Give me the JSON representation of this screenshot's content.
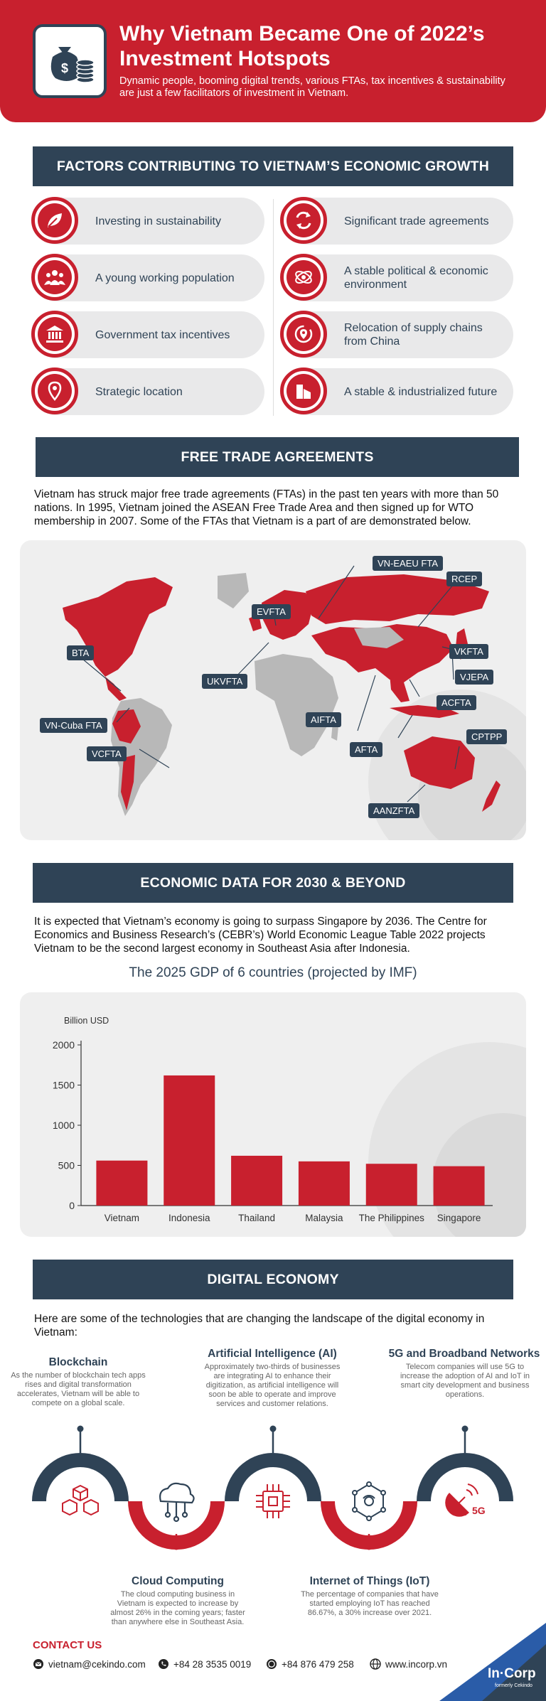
{
  "header": {
    "title": "Why Vietnam Became One of 2022’s Investment Hotspots",
    "subtitle": "Dynamic people, booming digital trends, various FTAs, tax incentives & sustainability are just a few facilitators of investment in Vietnam.",
    "logo_icon": "money-bag-coins-icon"
  },
  "factors": {
    "heading": "FACTORS CONTRIBUTING TO VIETNAM’S ECONOMIC GROWTH",
    "items": [
      {
        "label": "Investing in sustainability",
        "icon": "leaf-icon"
      },
      {
        "label": "Significant trade agreements",
        "icon": "exchange-arrows-icon"
      },
      {
        "label": "A young working population",
        "icon": "people-group-icon"
      },
      {
        "label": "A stable political & economic environment",
        "icon": "orbit-icon"
      },
      {
        "label": "Government tax incentives",
        "icon": "government-building-icon"
      },
      {
        "label": "Relocation of supply chains from China",
        "icon": "location-cycle-icon"
      },
      {
        "label": "Strategic location",
        "icon": "map-pin-icon"
      },
      {
        "label": "A stable & industrialized future",
        "icon": "industry-building-icon"
      }
    ]
  },
  "fta": {
    "heading": "FREE TRADE AGREEMENTS",
    "paragraph": "Vietnam has struck major free trade agreements (FTAs) in the past ten years with more than 50 nations. In 1995, Vietnam joined the ASEAN Free Trade Area and then signed up for WTO membership in 2007. Some of the FTAs that Vietnam is a part of are demonstrated below.",
    "labels": [
      "VN-EAEU FTA",
      "RCEP",
      "EVFTA",
      "BTA",
      "VKFTA",
      "VJEPA",
      "UKVFTA",
      "ACFTA",
      "AIFTA",
      "VN-Cuba FTA",
      "AFTA",
      "CPTPP",
      "VCFTA",
      "AANZFTA"
    ]
  },
  "economic": {
    "heading": "ECONOMIC DATA FOR 2030 & BEYOND",
    "paragraph": "It is expected that Vietnam’s economy is going to surpass Singapore by 2036. The Centre for Economics and Business Research’s (CEBR’s) World Economic League Table 2022 projects Vietnam to be the second largest economy in Southeast Asia after Indonesia.",
    "chart_title": "The 2025 GDP of 6 countries (projected by IMF)"
  },
  "chart_data": {
    "type": "bar",
    "title": "The 2025 GDP of 6 countries (projected by IMF)",
    "ylabel": "Billion USD",
    "xlabel": "",
    "categories": [
      "Vietnam",
      "Indonesia",
      "Thailand",
      "Malaysia",
      "The Philippines",
      "Singapore"
    ],
    "values": [
      560,
      1620,
      620,
      550,
      520,
      490
    ],
    "yticks": [
      "0",
      "500",
      "1000",
      "1500",
      "2000"
    ],
    "ylim": [
      0,
      2000
    ],
    "bar_color": "#c8202e",
    "grid": false
  },
  "digital": {
    "heading": "DIGITAL ECONOMY",
    "intro": "Here are some of the technologies that are changing the landscape of the digital economy in Vietnam:",
    "items": [
      {
        "title": "Blockchain",
        "desc": "As the number of blockchain tech apps rises and digital transformation accelerates, Vietnam will be able to compete on a global scale.",
        "icon": "blockchain-cubes-icon"
      },
      {
        "title": "Cloud Computing",
        "desc": "The cloud computing business in Vietnam is expected to increase by almost 26% in the coming years; faster than anywhere else in Southeast Asia.",
        "icon": "cloud-network-icon"
      },
      {
        "title": "Artificial Intelligence (AI)",
        "desc": "Approximately two-thirds of businesses are integrating AI to enhance their digitization, as artificial intelligence will soon be able to operate and improve services and customer relations.",
        "icon": "ai-chip-icon"
      },
      {
        "title": "Internet of Things (IoT)",
        "desc": "The percentage of companies that have started employing IoT has reached 86.67%, a 30% increase over 2021.",
        "icon": "iot-network-icon"
      },
      {
        "title": "5G and Broadband Networks",
        "desc": "Telecom companies will use 5G to increase the adoption of AI and IoT in smart city development and business operations.",
        "icon": "satellite-5g-icon",
        "badge": "5G"
      }
    ]
  },
  "contact": {
    "heading": "CONTACT US",
    "email": "vietnam@cekindo.com",
    "phone": "+84 28 3535 0019",
    "whatsapp": "+84 876 479 258",
    "website": "www.incorp.vn",
    "brand": "In",
    "brand2": "Corp",
    "brand_tag": "formerly Cekindo"
  }
}
